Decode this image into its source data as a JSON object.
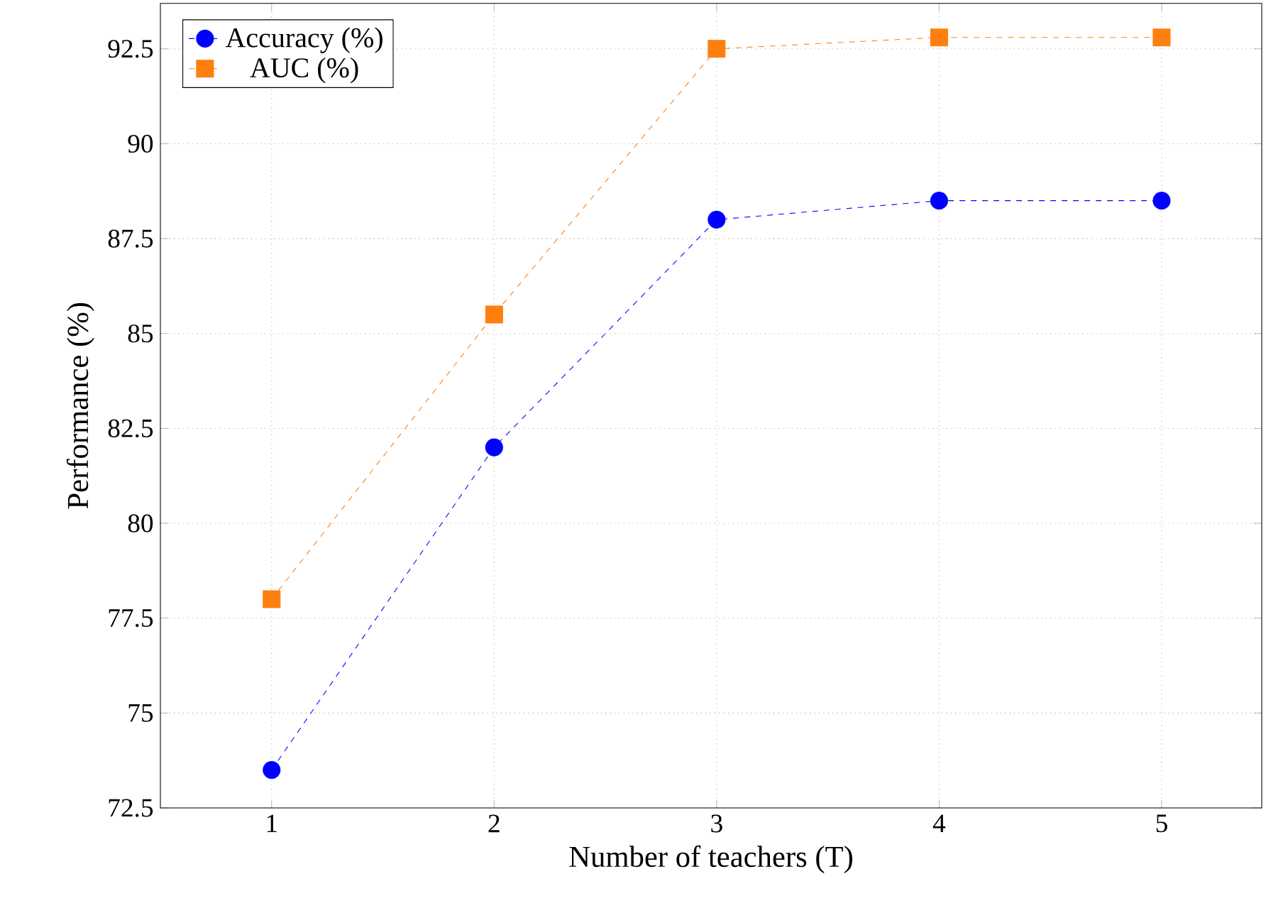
{
  "chart_data": {
    "type": "line",
    "xlabel": "Number of teachers (T)",
    "ylabel": "Performance (%)",
    "x": [
      1,
      2,
      3,
      4,
      5
    ],
    "series": [
      {
        "name": "Accuracy (%)",
        "color": "#0000ff",
        "values": [
          73.5,
          82,
          88,
          88.5,
          88.5
        ],
        "marker": "circle"
      },
      {
        "name": "AUC (%)",
        "color": "#ff7f0e",
        "values": [
          78,
          85.5,
          92.5,
          92.8,
          92.8
        ],
        "marker": "square"
      }
    ],
    "xlim": [
      0.5,
      5.45
    ],
    "ylim": [
      72.5,
      93.7
    ],
    "xticks": [
      1,
      2,
      3,
      4,
      5
    ],
    "yticks": [
      72.5,
      75,
      77.5,
      80,
      82.5,
      85,
      87.5,
      90,
      92.5
    ],
    "grid": true,
    "legend": "top left",
    "line_style": "dashed"
  }
}
